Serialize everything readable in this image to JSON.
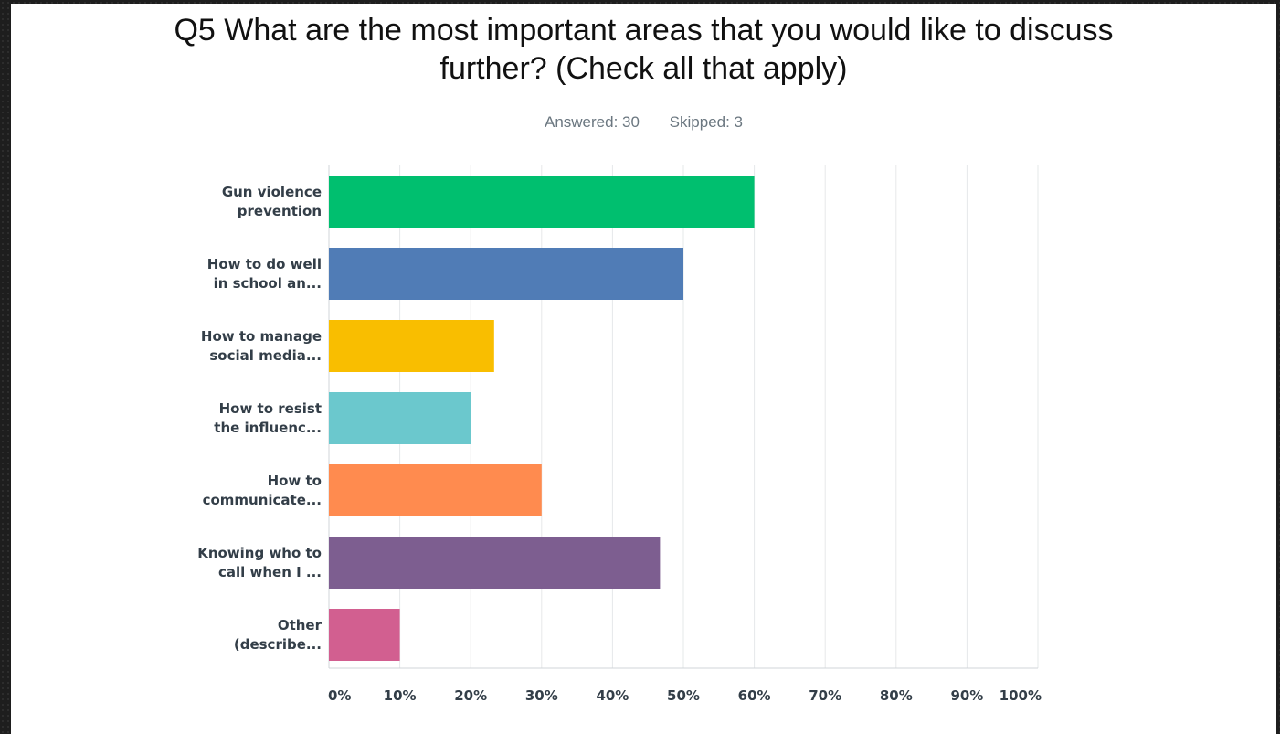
{
  "chart_data": {
    "type": "bar",
    "orientation": "horizontal",
    "title": "Q5 What are the most important areas that you would like to discuss further? (Check all that apply)",
    "title_lines": [
      "Q5 What are the most important areas that you would like to discuss",
      "further? (Check all that apply)"
    ],
    "answered": "Answered: 30",
    "skipped": "Skipped: 3",
    "categories": [
      [
        "Gun violence",
        "prevention"
      ],
      [
        "How to do well",
        "in school an..."
      ],
      [
        "How to manage",
        "social media..."
      ],
      [
        "How to resist",
        "the influenc..."
      ],
      [
        "How to",
        "communicate..."
      ],
      [
        "Knowing who to",
        "call when I ..."
      ],
      [
        "Other",
        "(describe..."
      ]
    ],
    "values": [
      60,
      50,
      23.3,
      20,
      30,
      46.7,
      10
    ],
    "colors": [
      "#00bf6f",
      "#507cb6",
      "#f9be00",
      "#6bc8cd",
      "#ff8b4f",
      "#7d5e90",
      "#d25f90"
    ],
    "xlim": [
      0,
      100
    ],
    "xticks": [
      "0%",
      "10%",
      "20%",
      "30%",
      "40%",
      "50%",
      "60%",
      "70%",
      "80%",
      "90%",
      "100%"
    ],
    "grid": true,
    "legend": "none"
  }
}
